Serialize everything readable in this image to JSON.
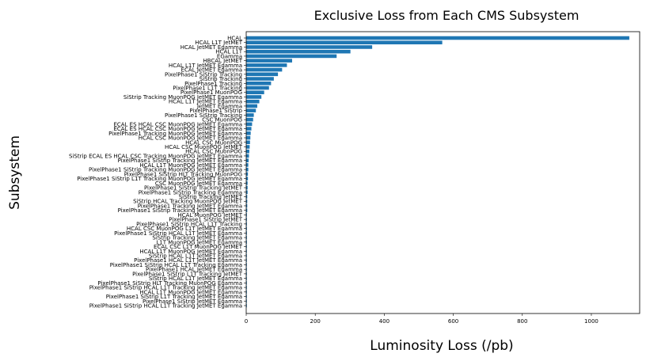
{
  "chart_data": {
    "type": "bar",
    "orientation": "horizontal",
    "title": "Exclusive Loss from Each CMS Subsystem",
    "xlabel": "Luminosity Loss (/pb)",
    "ylabel": "Subsystem",
    "xlim": [
      0,
      1140
    ],
    "xticks": [
      0,
      200,
      400,
      600,
      800,
      1000
    ],
    "grid": false,
    "bar_color": "#1f77b4",
    "categories": [
      "HCAL",
      "HCAL L1T JetMET",
      "HCAL JetMET Egamma",
      "HCAL L1T",
      "EGamma",
      "HBCAL JetMET",
      "HCAL L1T JetMET Egamma",
      "ECAL JetMET Egamma",
      "PixelPhase1 SiStrip Tracking",
      "SiStrip Tracking",
      "PixelPhase1 Tracking",
      "PixelPhase1 L1T Tracking",
      "PixelPhase1 MuonPOG",
      "SiStrip Tracking MuonPOG JetMET Egamma",
      "HCAL L1T JetMET Egamma",
      "JetMET Egamma",
      "PixelPhase1 SiStrip",
      "PixelPhase1 SiStrip Tracking",
      "CSC MuonPOG",
      "ECAL ES HCAL CSC MuonPOG JetMET Egamma",
      "ECAL ES HCAL CSC MuonPOG JetMET Egamma",
      "PixelPhase1 Tracking MuonPOG JetMET Egamma",
      "HCAL CSC MuonPOG JetMET Egamma",
      "HCAL CSC MuonPOG",
      "HCAL CSC MuonPOG JetMET",
      "HCAL CSC MuonPOG",
      "SiStrip ECAL ES HCAL CSC Tracking MuonPOG JetMET Egamma",
      "PixelPhase1 SiStrip Tracking JetMET Egamma",
      "HCAL L1T MuonPOG JetMET Egamma",
      "PixelPhase1 SiStrip Tracking MuonPOG JetMET Egamma",
      "PixelPhase1 SiStrip HLT Tracking MuonPOG",
      "PixelPhase1 SiStrip L1T Tracking MuonPOG JetMET Egamma",
      "CSC MuonPOG JetMET Egamma",
      "PixelPhase1 SiStrip Tracking JetMET",
      "PixelPhase1 SiStrip Tracking Egamma",
      "SiStrip Tracking JetMET",
      "SiStrip HCAL Tracking MuonPOG JetMET",
      "PixelPhase1 Tracking JetMET Egamma",
      "PixelPhase1 SiStrip Tracking JetMET Egamma",
      "HCAL MuonPOG JetMET",
      "PixelPhase1 SiStrip JetMET",
      "PixelPhase1 SiStrip HCAL L1T Tracking",
      "HCAL CSC MuonPOG L1T JetMET Egamma",
      "PixelPhase1 SiStrip HCAL L1T JetMET Egamma",
      "SiStrip Tracking JetMET Egamma",
      "L1T MuonPOG JetMET Egamma",
      "ECAL CSC L1T MuonPOG JetMET",
      "HCAL L1T MuonPOG JetMET Egamma",
      "SiStrip HCAL L1T JetMET Egamma",
      "PixelPhase1 HCAL L1T JetMET Egamma",
      "PixelPhase1 SiStrip HCAL L1T Tracking Egamma",
      "PixelPhase1 HCAL JetMET Egamma",
      "PixelPhase1 SiStrip L1T Tracking JetMET",
      "SiStrip HCAL L1T JetMET Egamma",
      "PixelPhase1 SiStrip HLT Tracking MuonPOG Egamma",
      "PixelPhase1 SiStrip HCAL L1T Tracking JetMET Egamma",
      "HCAL L1T MuonPOG JetMET Egamma",
      "PixelPhase1 SiStrip L1T Tracking JetMET Egamma",
      "PixelPhase1 SiStrip JetMET Egamma",
      "PixelPhase1 SiStrip HCAL L1T Tracking JetMET Egamma"
    ],
    "values": [
      1110,
      568,
      365,
      302,
      262,
      133,
      118,
      104,
      92,
      80,
      72,
      66,
      52,
      44,
      38,
      32,
      28,
      22,
      20,
      17,
      15,
      13,
      12,
      11,
      10,
      9,
      8,
      7,
      6,
      6,
      5,
      5,
      4,
      4,
      4,
      3,
      3,
      3,
      3,
      2,
      2,
      2,
      2,
      2,
      2,
      2,
      1,
      1,
      1,
      1,
      1,
      1,
      1,
      1,
      1,
      1,
      1,
      1,
      1,
      1
    ]
  }
}
